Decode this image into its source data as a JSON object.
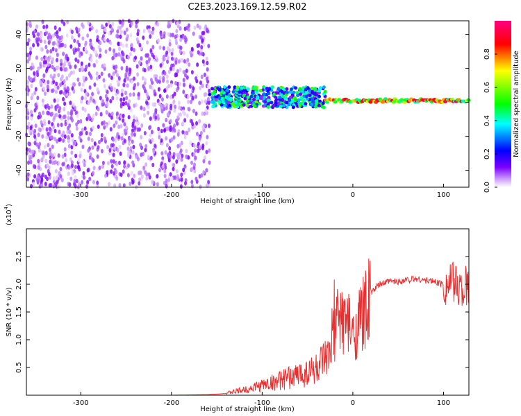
{
  "title": "C2E3.2023.169.12.59.R02",
  "chart_data": [
    {
      "type": "heatmap",
      "name": "spectrogram",
      "xlabel": "Height of straight line (km)",
      "ylabel": "Frequency (Hz)",
      "xlim": [
        -360,
        128
      ],
      "ylim": [
        -50,
        48
      ],
      "xticks": [
        -300,
        -200,
        -100,
        0,
        100
      ],
      "yticks": [
        -40,
        -20,
        0,
        20,
        40
      ],
      "colorbar": {
        "label": "Normalized spectral amplitude",
        "range": [
          0.0,
          1.0
        ],
        "ticks": [
          0.0,
          0.2,
          0.4,
          0.6,
          0.8
        ],
        "colormap": [
          "#ffffff",
          "#7b00ff",
          "#0000ff",
          "#00ffff",
          "#00ff00",
          "#ffff00",
          "#ff0000",
          "#ff0080"
        ]
      },
      "regions": [
        {
          "x": [
            -360,
            -158
          ],
          "freq": [
            -50,
            48
          ],
          "amplitude": 0.1,
          "description_level": "broadband noise"
        },
        {
          "x": [
            -158,
            -30
          ],
          "freq_center": 3,
          "freq_halfwidth": 6,
          "amplitude": 0.35
        },
        {
          "x": [
            -30,
            128
          ],
          "freq_center": 1,
          "freq_halfwidth": 2,
          "amplitude": 0.85
        }
      ]
    },
    {
      "type": "line",
      "name": "snr",
      "xlabel": "Height of straight line (km)",
      "ylabel": "SNR (10 * v/v)",
      "scale_label": "(x10",
      "scale_exp": "4",
      "scale_close": ")",
      "xlim": [
        -360,
        128
      ],
      "ylim": [
        0,
        3.0
      ],
      "xticks": [
        -300,
        -200,
        -100,
        0,
        100
      ],
      "yticks": [
        0.5,
        1.0,
        1.5,
        2.0,
        2.5
      ],
      "line_color": "#e83030",
      "x": [
        -360,
        -200,
        -160,
        -140,
        -120,
        -100,
        -80,
        -60,
        -40,
        -25,
        -18,
        -12,
        -5,
        0,
        10,
        20,
        30,
        40,
        50,
        60,
        70,
        80,
        90,
        100,
        110,
        120,
        128
      ],
      "y": [
        0.0,
        0.0,
        0.01,
        0.03,
        0.08,
        0.15,
        0.22,
        0.3,
        0.4,
        0.55,
        1.4,
        1.5,
        1.35,
        1.1,
        1.5,
        1.85,
        2.0,
        2.05,
        2.05,
        2.08,
        2.1,
        2.07,
        2.05,
        2.0,
        2.02,
        1.95,
        1.92
      ]
    }
  ]
}
